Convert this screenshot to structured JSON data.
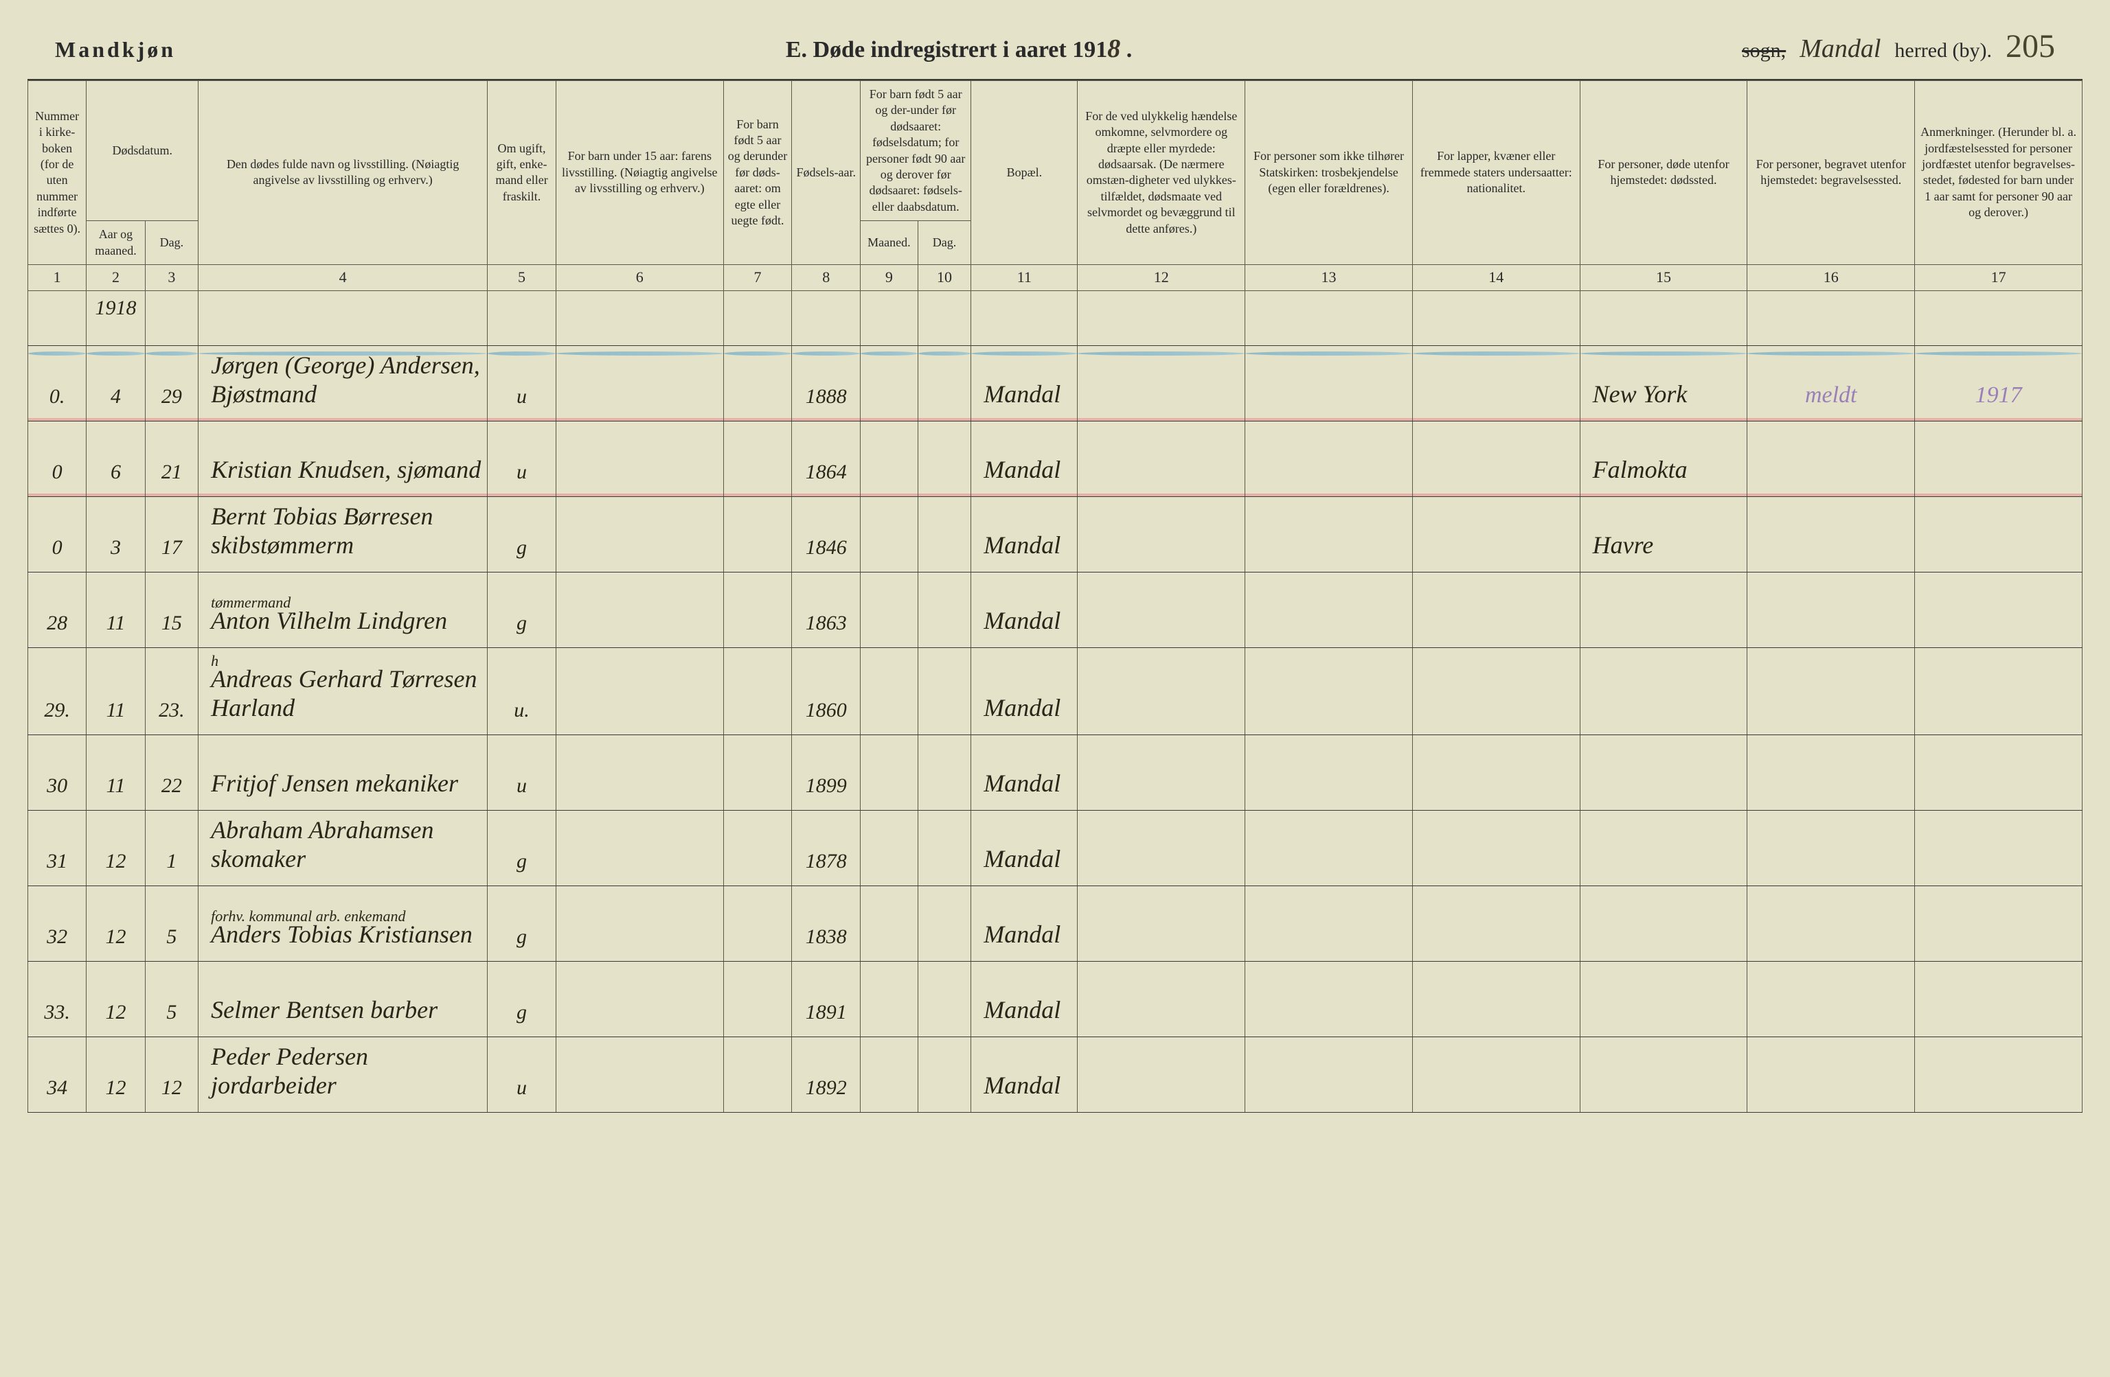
{
  "header": {
    "left": "Mandkjøn",
    "center": "E.  Døde indregistrert i aaret 191",
    "year_suffix_hand": "8",
    "sogn_label": "sogn,",
    "sogn_value": "Mandal",
    "herred_label": "herred (by).",
    "page_number": "205"
  },
  "columns": {
    "c1": "Nummer i kirke-boken (for de uten nummer indførte sættes 0).",
    "c2": "Dødsdatum.",
    "c2a": "Aar og maaned.",
    "c2b": "Dag.",
    "c4": "Den dødes fulde navn og livsstilling.\n(Nøiagtig angivelse av livsstilling og erhverv.)",
    "c5": "Om ugift, gift, enke-mand eller fraskilt.",
    "c6": "For barn under 15 aar: farens livsstilling.\n(Nøiagtig angivelse av livsstilling og erhverv.)",
    "c7": "For barn født 5 aar og derunder før døds-aaret: om egte eller uegte født.",
    "c8": "Fødsels-aar.",
    "c910": "For barn født 5 aar og der-under før dødsaaret: fødselsdatum; for personer født 90 aar og derover før dødsaaret: fødsels- eller daabsdatum.",
    "c9": "Maaned.",
    "c10": "Dag.",
    "c11": "Bopæl.",
    "c12": "For de ved ulykkelig hændelse omkomne, selvmordere og dræpte eller myrdede: dødsaarsak.\n(De nærmere omstæn-digheter ved ulykkes-tilfældet, dødsmaate ved selvmordet og bevæggrund til dette anføres.)",
    "c13": "For personer som ikke tilhører Statskirken: trosbekjendelse (egen eller forældrenes).",
    "c14": "For lapper, kvæner eller fremmede staters undersaatter: nationalitet.",
    "c15": "For personer, døde utenfor hjemstedet: dødssted.",
    "c16": "For personer, begravet utenfor hjemstedet: begravelsessted.",
    "c17": "Anmerkninger.\n(Herunder bl. a. jordfæstelsessted for personer jordfæstet utenfor begravelses-stedet, fødested for barn under 1 aar samt for personer 90 aar og derover.)"
  },
  "colnums": [
    "1",
    "2",
    "3",
    "4",
    "5",
    "6",
    "7",
    "8",
    "9",
    "10",
    "11",
    "12",
    "13",
    "14",
    "15",
    "16",
    "17"
  ],
  "year_note": "1918",
  "rows": [
    {
      "num": "0.",
      "month": "4",
      "day": "29",
      "name": "Jørgen (George) Andersen, Bjøstmand",
      "status": "u",
      "father": "",
      "legit": "",
      "birth": "1888",
      "bm": "",
      "bd": "",
      "place": "Mandal",
      "c12": "",
      "c13": "",
      "c14": "",
      "c15": "New York",
      "c16": "meldt",
      "c17": "1917"
    },
    {
      "num": "0",
      "month": "6",
      "day": "21",
      "name": "Kristian Knudsen, sjømand",
      "status": "u",
      "father": "",
      "legit": "",
      "birth": "1864",
      "bm": "",
      "bd": "",
      "place": "Mandal",
      "c12": "",
      "c13": "",
      "c14": "",
      "c15": "Falmokta",
      "c16": "",
      "c17": ""
    },
    {
      "num": "0",
      "month": "3",
      "day": "17",
      "name": "Bernt Tobias Børresen skibstømmerm",
      "status": "g",
      "father": "",
      "legit": "",
      "birth": "1846",
      "bm": "",
      "bd": "",
      "place": "Mandal",
      "c12": "",
      "c13": "",
      "c14": "",
      "c15": "Havre",
      "c16": "",
      "c17": ""
    },
    {
      "num": "28",
      "month": "11",
      "day": "15",
      "name_sup": "tømmermand",
      "name": "Anton Vilhelm Lindgren",
      "status": "g",
      "father": "",
      "legit": "",
      "birth": "1863",
      "bm": "",
      "bd": "",
      "place": "Mandal",
      "c12": "",
      "c13": "",
      "c14": "",
      "c15": "",
      "c16": "",
      "c17": ""
    },
    {
      "num": "29.",
      "month": "11",
      "day": "23.",
      "name_sup": "h",
      "name": "Andreas Gerhard Tørresen Harland",
      "status": "u.",
      "father": "",
      "legit": "",
      "birth": "1860",
      "bm": "",
      "bd": "",
      "place": "Mandal",
      "c12": "",
      "c13": "",
      "c14": "",
      "c15": "",
      "c16": "",
      "c17": ""
    },
    {
      "num": "30",
      "month": "11",
      "day": "22",
      "name": "Fritjof Jensen   mekaniker",
      "status": "u",
      "father": "",
      "legit": "",
      "birth": "1899",
      "bm": "",
      "bd": "",
      "place": "Mandal",
      "c12": "",
      "c13": "",
      "c14": "",
      "c15": "",
      "c16": "",
      "c17": ""
    },
    {
      "num": "31",
      "month": "12",
      "day": "1",
      "name": "Abraham Abrahamsen skomaker",
      "status": "g",
      "father": "",
      "legit": "",
      "birth": "1878",
      "bm": "",
      "bd": "",
      "place": "Mandal",
      "c12": "",
      "c13": "",
      "c14": "",
      "c15": "",
      "c16": "",
      "c17": ""
    },
    {
      "num": "32",
      "month": "12",
      "day": "5",
      "name_sup": "forhv. kommunal arb.  enkemand",
      "name": "Anders Tobias Kristiansen",
      "status": "g",
      "father": "",
      "legit": "",
      "birth": "1838",
      "bm": "",
      "bd": "",
      "place": "Mandal",
      "c12": "",
      "c13": "",
      "c14": "",
      "c15": "",
      "c16": "",
      "c17": ""
    },
    {
      "num": "33.",
      "month": "12",
      "day": "5",
      "name": "Selmer Bentsen   barber",
      "status": "g",
      "father": "",
      "legit": "",
      "birth": "1891",
      "bm": "",
      "bd": "",
      "place": "Mandal",
      "c12": "",
      "c13": "",
      "c14": "",
      "c15": "",
      "c16": "",
      "c17": ""
    },
    {
      "num": "34",
      "month": "12",
      "day": "12",
      "name": "Peder Pedersen   jordarbeider",
      "status": "u",
      "father": "",
      "legit": "",
      "birth": "1892",
      "bm": "",
      "bd": "",
      "place": "Mandal",
      "c12": "",
      "c13": "",
      "c14": "",
      "c15": "",
      "c16": "",
      "c17": ""
    }
  ],
  "style": {
    "background": "#e4e2c9",
    "ink": "#2a2518",
    "rule": "#3a3a3a",
    "blue_wave": "#5aa0c4",
    "pink_line": "#e89090",
    "purple": "#9a7fb8",
    "font_print": "Georgia, Times New Roman, serif",
    "font_hand": "Brush Script MT, cursive",
    "header_fontsize": 32,
    "cell_fontsize": 20,
    "hand_fontsize": 36
  }
}
